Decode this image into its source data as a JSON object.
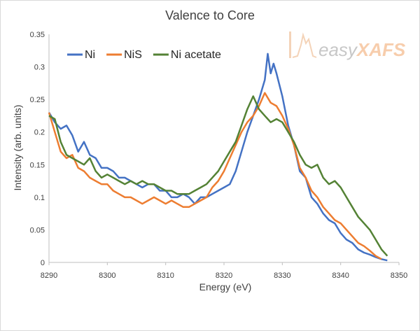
{
  "chart_data": {
    "type": "line",
    "title": "Valence to Core",
    "xlabel": "Energy (eV)",
    "ylabel": "Intensity (arb. units)",
    "xlim": [
      8290,
      8350
    ],
    "ylim": [
      0,
      0.35
    ],
    "xticks": [
      8290,
      8300,
      8310,
      8320,
      8330,
      8340,
      8350
    ],
    "yticks": [
      0,
      0.05,
      0.1,
      0.15,
      0.2,
      0.25,
      0.3,
      0.35
    ],
    "ytick_labels": [
      "0",
      "0.05",
      "0.1",
      "0.15",
      "0.2",
      "0.25",
      "0.3",
      "0.35"
    ],
    "grid": false,
    "legend": "top-left",
    "watermark": "easyXAFS",
    "series": [
      {
        "name": "Ni",
        "color": "#4472c4",
        "points": [
          [
            8290,
            0.23
          ],
          [
            8291,
            0.215
          ],
          [
            8292,
            0.205
          ],
          [
            8293,
            0.21
          ],
          [
            8294,
            0.195
          ],
          [
            8295,
            0.17
          ],
          [
            8296,
            0.185
          ],
          [
            8297,
            0.165
          ],
          [
            8298,
            0.16
          ],
          [
            8299,
            0.145
          ],
          [
            8300,
            0.145
          ],
          [
            8301,
            0.14
          ],
          [
            8302,
            0.13
          ],
          [
            8303,
            0.13
          ],
          [
            8304,
            0.125
          ],
          [
            8305,
            0.12
          ],
          [
            8306,
            0.115
          ],
          [
            8307,
            0.12
          ],
          [
            8308,
            0.12
          ],
          [
            8309,
            0.11
          ],
          [
            8310,
            0.11
          ],
          [
            8311,
            0.1
          ],
          [
            8312,
            0.1
          ],
          [
            8313,
            0.105
          ],
          [
            8314,
            0.1
          ],
          [
            8315,
            0.09
          ],
          [
            8316,
            0.1
          ],
          [
            8317,
            0.1
          ],
          [
            8318,
            0.105
          ],
          [
            8319,
            0.11
          ],
          [
            8320,
            0.115
          ],
          [
            8321,
            0.12
          ],
          [
            8322,
            0.14
          ],
          [
            8323,
            0.17
          ],
          [
            8324,
            0.2
          ],
          [
            8325,
            0.225
          ],
          [
            8326,
            0.25
          ],
          [
            8327,
            0.28
          ],
          [
            8327.5,
            0.32
          ],
          [
            8328,
            0.29
          ],
          [
            8328.5,
            0.305
          ],
          [
            8329,
            0.29
          ],
          [
            8330,
            0.255
          ],
          [
            8331,
            0.21
          ],
          [
            8332,
            0.18
          ],
          [
            8333,
            0.14
          ],
          [
            8334,
            0.13
          ],
          [
            8335,
            0.1
          ],
          [
            8336,
            0.09
          ],
          [
            8337,
            0.075
          ],
          [
            8338,
            0.065
          ],
          [
            8339,
            0.06
          ],
          [
            8340,
            0.045
          ],
          [
            8341,
            0.035
          ],
          [
            8342,
            0.03
          ],
          [
            8343,
            0.02
          ],
          [
            8344,
            0.015
          ],
          [
            8345,
            0.012
          ],
          [
            8346,
            0.008
          ],
          [
            8347,
            0.005
          ],
          [
            8348,
            0.003
          ]
        ]
      },
      {
        "name": "NiS",
        "color": "#ed7d31",
        "points": [
          [
            8290,
            0.23
          ],
          [
            8291,
            0.2
          ],
          [
            8292,
            0.17
          ],
          [
            8293,
            0.16
          ],
          [
            8294,
            0.165
          ],
          [
            8295,
            0.145
          ],
          [
            8296,
            0.14
          ],
          [
            8297,
            0.13
          ],
          [
            8298,
            0.125
          ],
          [
            8299,
            0.12
          ],
          [
            8300,
            0.12
          ],
          [
            8301,
            0.11
          ],
          [
            8302,
            0.105
          ],
          [
            8303,
            0.1
          ],
          [
            8304,
            0.1
          ],
          [
            8305,
            0.095
          ],
          [
            8306,
            0.09
          ],
          [
            8307,
            0.095
          ],
          [
            8308,
            0.1
          ],
          [
            8309,
            0.095
          ],
          [
            8310,
            0.09
          ],
          [
            8311,
            0.095
          ],
          [
            8312,
            0.09
          ],
          [
            8313,
            0.085
          ],
          [
            8314,
            0.085
          ],
          [
            8315,
            0.09
          ],
          [
            8316,
            0.095
          ],
          [
            8317,
            0.1
          ],
          [
            8318,
            0.115
          ],
          [
            8319,
            0.125
          ],
          [
            8320,
            0.14
          ],
          [
            8321,
            0.16
          ],
          [
            8322,
            0.18
          ],
          [
            8323,
            0.2
          ],
          [
            8324,
            0.215
          ],
          [
            8325,
            0.225
          ],
          [
            8326,
            0.24
          ],
          [
            8327,
            0.26
          ],
          [
            8328,
            0.245
          ],
          [
            8329,
            0.24
          ],
          [
            8330,
            0.225
          ],
          [
            8331,
            0.205
          ],
          [
            8332,
            0.18
          ],
          [
            8333,
            0.145
          ],
          [
            8334,
            0.13
          ],
          [
            8335,
            0.11
          ],
          [
            8336,
            0.1
          ],
          [
            8337,
            0.085
          ],
          [
            8338,
            0.075
          ],
          [
            8339,
            0.065
          ],
          [
            8340,
            0.06
          ],
          [
            8341,
            0.05
          ],
          [
            8342,
            0.04
          ],
          [
            8343,
            0.03
          ],
          [
            8344,
            0.025
          ],
          [
            8345,
            0.018
          ],
          [
            8346,
            0.01
          ],
          [
            8347,
            0.005
          ]
        ]
      },
      {
        "name": "Ni acetate",
        "color": "#548235",
        "points": [
          [
            8290,
            0.225
          ],
          [
            8291,
            0.22
          ],
          [
            8292,
            0.185
          ],
          [
            8293,
            0.165
          ],
          [
            8294,
            0.16
          ],
          [
            8295,
            0.155
          ],
          [
            8296,
            0.15
          ],
          [
            8297,
            0.16
          ],
          [
            8298,
            0.14
          ],
          [
            8299,
            0.13
          ],
          [
            8300,
            0.135
          ],
          [
            8301,
            0.13
          ],
          [
            8302,
            0.125
          ],
          [
            8303,
            0.12
          ],
          [
            8304,
            0.125
          ],
          [
            8305,
            0.12
          ],
          [
            8306,
            0.125
          ],
          [
            8307,
            0.12
          ],
          [
            8308,
            0.12
          ],
          [
            8309,
            0.115
          ],
          [
            8310,
            0.11
          ],
          [
            8311,
            0.11
          ],
          [
            8312,
            0.105
          ],
          [
            8313,
            0.105
          ],
          [
            8314,
            0.105
          ],
          [
            8315,
            0.11
          ],
          [
            8316,
            0.115
          ],
          [
            8317,
            0.12
          ],
          [
            8318,
            0.13
          ],
          [
            8319,
            0.14
          ],
          [
            8320,
            0.155
          ],
          [
            8321,
            0.17
          ],
          [
            8322,
            0.185
          ],
          [
            8323,
            0.21
          ],
          [
            8324,
            0.235
          ],
          [
            8325,
            0.255
          ],
          [
            8326,
            0.235
          ],
          [
            8327,
            0.225
          ],
          [
            8328,
            0.215
          ],
          [
            8329,
            0.22
          ],
          [
            8330,
            0.215
          ],
          [
            8331,
            0.2
          ],
          [
            8332,
            0.185
          ],
          [
            8333,
            0.165
          ],
          [
            8334,
            0.15
          ],
          [
            8335,
            0.145
          ],
          [
            8336,
            0.15
          ],
          [
            8337,
            0.13
          ],
          [
            8338,
            0.12
          ],
          [
            8339,
            0.125
          ],
          [
            8340,
            0.115
          ],
          [
            8341,
            0.1
          ],
          [
            8342,
            0.085
          ],
          [
            8343,
            0.07
          ],
          [
            8344,
            0.06
          ],
          [
            8345,
            0.05
          ],
          [
            8346,
            0.035
          ],
          [
            8347,
            0.02
          ],
          [
            8348,
            0.01
          ]
        ]
      }
    ]
  }
}
